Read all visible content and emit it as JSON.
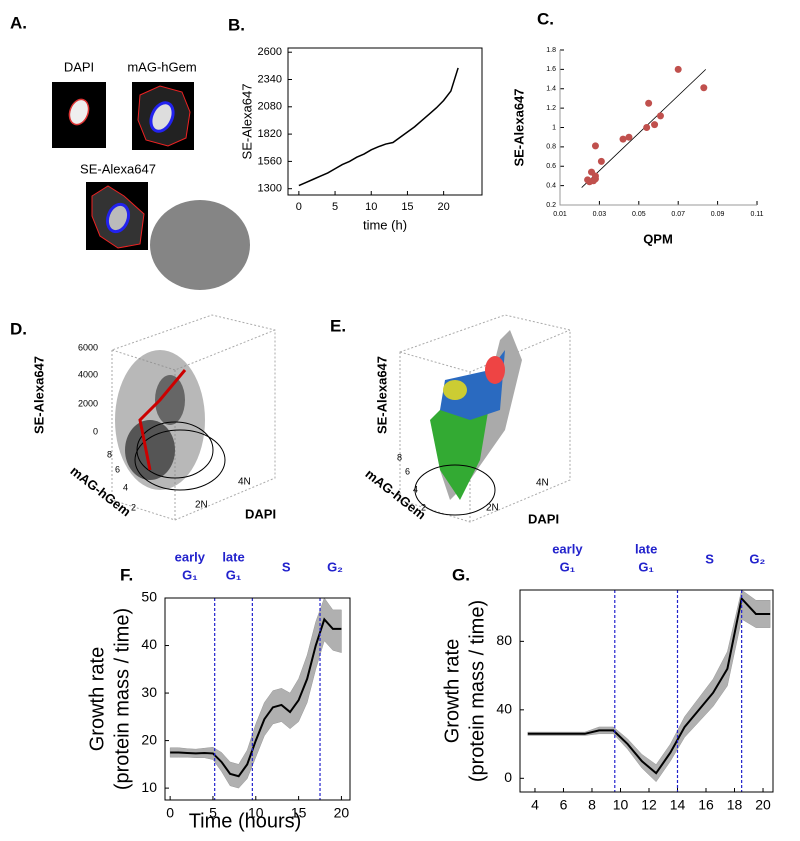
{
  "figure": {
    "a": {
      "panel": "A.",
      "labels": [
        "DAPI",
        "mAG-hGem",
        "SE-Alexa647"
      ]
    },
    "d": {
      "panel": "D.",
      "zlabel": "SE-Alexa647",
      "ylabel": "mAG-hGem",
      "xlabel": "DAPI",
      "zticks": [
        "6000",
        "4000",
        "2000",
        "0"
      ],
      "yticks": [
        "8",
        "6",
        "4",
        "2"
      ],
      "xticks": [
        "2N",
        "4N"
      ]
    },
    "e": {
      "panel": "E.",
      "zlabel": "SE-Alexa647",
      "ylabel": "mAG-hGem",
      "xlabel": "DAPI",
      "yticks": [
        "8",
        "6",
        "4",
        "2"
      ],
      "xticks": [
        "2N",
        "4N"
      ]
    }
  },
  "chart_data": [
    {
      "type": "line",
      "panel": "B.",
      "xlabel": "time (h)",
      "ylabel": "SE-Alexa647",
      "color": "#000000",
      "x": [
        0,
        1,
        2,
        3,
        4,
        5,
        6,
        7,
        8,
        9,
        10,
        11,
        12,
        13,
        14,
        15,
        16,
        17,
        18,
        19,
        20,
        21,
        22
      ],
      "values": [
        1330,
        1360,
        1390,
        1420,
        1450,
        1490,
        1530,
        1560,
        1600,
        1630,
        1670,
        1700,
        1725,
        1740,
        1790,
        1840,
        1890,
        1950,
        2010,
        2070,
        2140,
        2230,
        2450
      ],
      "xlim": [
        -1.5,
        25.3
      ],
      "ylim": [
        1240,
        2640
      ],
      "xticks": [
        0,
        5,
        10,
        15,
        20
      ],
      "yticks": [
        1300,
        1560,
        1820,
        2080,
        2340,
        2600
      ]
    },
    {
      "type": "scatter",
      "panel": "C.",
      "xlabel": "QPM",
      "ylabel": "SE-Alexa647",
      "color": "#c0504d",
      "x": [
        0.024,
        0.025,
        0.026,
        0.027,
        0.028,
        0.028,
        0.031,
        0.028,
        0.042,
        0.045,
        0.054,
        0.055,
        0.058,
        0.061,
        0.07,
        0.083
      ],
      "values": [
        0.46,
        0.44,
        0.54,
        0.45,
        0.5,
        0.81,
        0.65,
        0.47,
        0.88,
        0.9,
        1.0,
        1.25,
        1.03,
        1.12,
        1.6,
        1.41
      ],
      "trendline": {
        "x": [
          0.021,
          0.084
        ],
        "values": [
          0.38,
          1.6
        ]
      },
      "xlim": [
        0.01,
        0.11
      ],
      "ylim": [
        0.2,
        1.8
      ],
      "xticks": [
        0.01,
        0.03,
        0.05,
        0.07,
        0.09,
        0.11
      ],
      "yticks": [
        0.2,
        0.4,
        0.6,
        0.8,
        1,
        1.2,
        1.4,
        1.6,
        1.8
      ]
    },
    {
      "type": "band-line",
      "panel": "F.",
      "xlabel": "Time (hours)",
      "ylabel": [
        "Growth rate",
        "(protein mass / time)"
      ],
      "color": "#000000",
      "band_color": "#b0b0b0",
      "x": [
        0,
        1,
        2,
        3,
        4,
        5,
        6,
        7,
        8,
        9,
        10,
        11,
        12,
        13,
        14,
        15,
        16,
        17,
        18,
        19,
        20
      ],
      "values": [
        17.5,
        17.5,
        17.4,
        17.3,
        17.4,
        17.3,
        15.5,
        13,
        12.5,
        15,
        20,
        24.5,
        27,
        27.5,
        26,
        28.5,
        33,
        40,
        45.5,
        43.5,
        43.5
      ],
      "lower": [
        16.5,
        16.5,
        16.5,
        16.4,
        16.4,
        16,
        13.5,
        10.5,
        10,
        12,
        16.5,
        21,
        23.5,
        24,
        22.5,
        24,
        28,
        35,
        41,
        39,
        38.5
      ],
      "upper": [
        18.5,
        18.5,
        18.3,
        18.2,
        18.4,
        18.6,
        17.5,
        15.5,
        15,
        18,
        23.5,
        28,
        30.5,
        31,
        30,
        33,
        38,
        45,
        50,
        47.5,
        47.5
      ],
      "phase_lines": [
        5.2,
        9.6,
        17.5
      ],
      "phase_color": "#2222cc",
      "phase_labels": [
        [
          "early",
          "G₁"
        ],
        [
          "late",
          "G₁"
        ],
        [
          "S"
        ],
        [
          "G₂"
        ]
      ],
      "xlim": [
        -0.6,
        21
      ],
      "ylim": [
        7.5,
        50
      ],
      "xticks": [
        0,
        5,
        10,
        15,
        20
      ],
      "yticks": [
        10,
        20,
        30,
        40,
        50
      ]
    },
    {
      "type": "band-line",
      "panel": "G.",
      "ylabel": [
        "Growth rate",
        "(protein mass / time)"
      ],
      "color": "#000000",
      "band_color": "#b0b0b0",
      "x": [
        3.5,
        4.5,
        5.5,
        6.5,
        7.5,
        8.5,
        9.5,
        10.5,
        11.5,
        12.5,
        13.5,
        14.5,
        15.5,
        16.5,
        17.5,
        18.5,
        19.5,
        20.5
      ],
      "values": [
        26,
        26,
        26,
        26,
        26,
        28,
        28,
        20,
        10,
        3,
        15,
        30,
        40,
        50,
        64,
        105,
        96,
        96
      ],
      "lower": [
        25,
        25,
        25,
        25,
        25,
        26,
        26,
        17,
        6,
        -2,
        10,
        24,
        33,
        42,
        54,
        93,
        88,
        88
      ],
      "upper": [
        27,
        27,
        27,
        27,
        27,
        30,
        30,
        23,
        14,
        8,
        20,
        36,
        47,
        58,
        74,
        110,
        104,
        104
      ],
      "phase_lines": [
        9.6,
        14,
        18.5
      ],
      "phase_color": "#2222cc",
      "phase_labels": [
        [
          "early",
          "G₁"
        ],
        [
          "late",
          "G₁"
        ],
        [
          "S"
        ],
        [
          "G₂"
        ]
      ],
      "xlim": [
        2.95,
        20.7
      ],
      "ylim": [
        -8,
        110
      ],
      "xticks": [
        4,
        6,
        8,
        10,
        12,
        14,
        16,
        18,
        20
      ],
      "yticks": [
        0,
        40,
        80
      ]
    }
  ]
}
